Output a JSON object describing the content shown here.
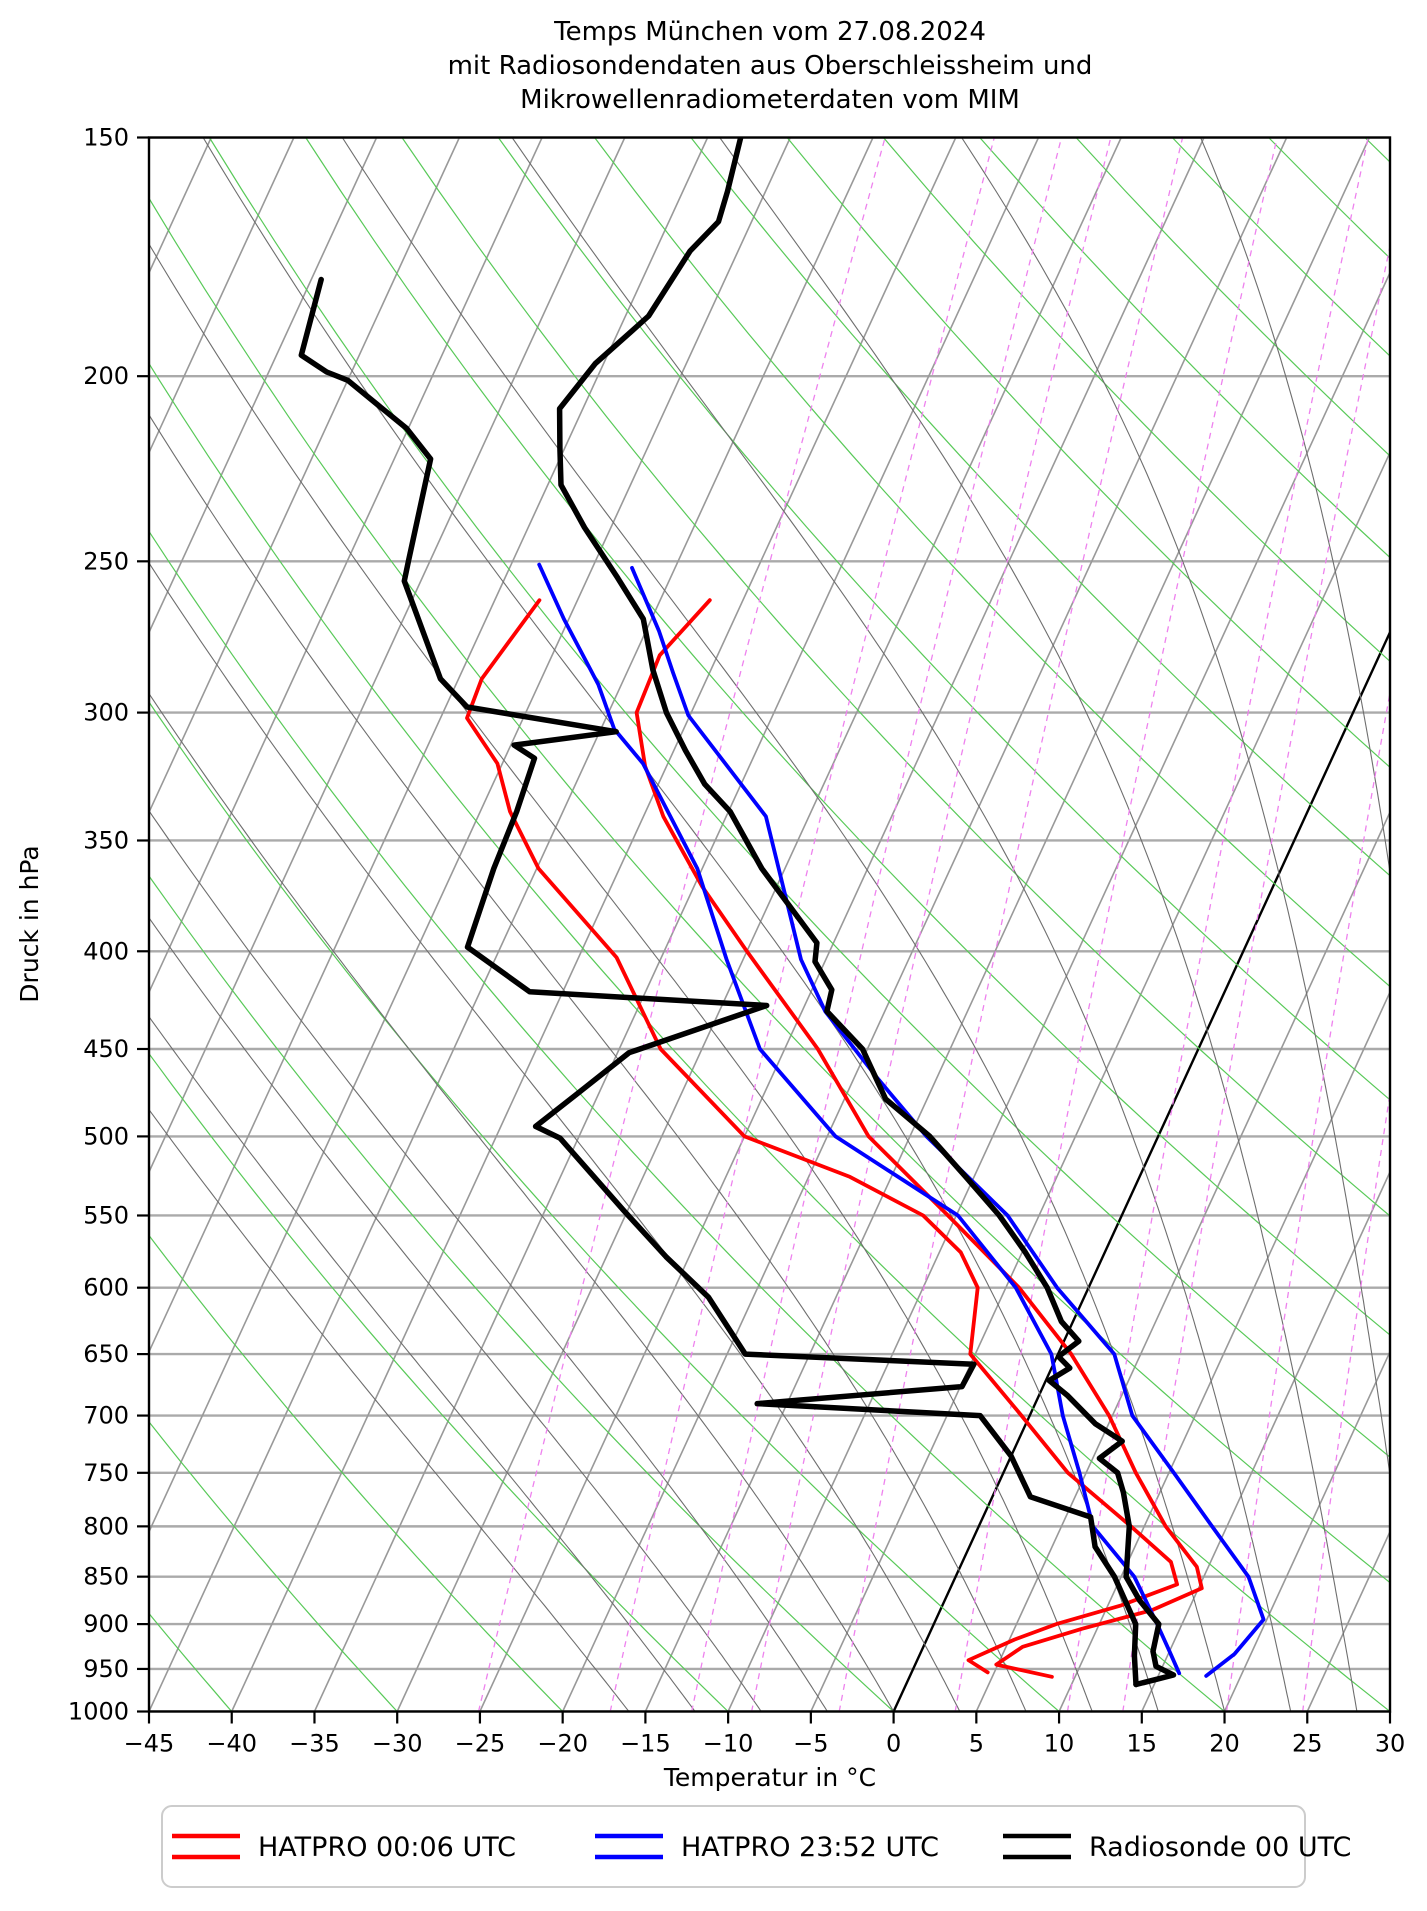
{
  "title": {
    "line1": "Temps München vom 27.08.2024",
    "line2": "mit Radiosondendaten aus Oberschleissheim und",
    "line3": "Mikrowellenradiometerdaten vom MIM"
  },
  "axes": {
    "x_label": "Temperatur in °C",
    "y_label": "Druck in hPa",
    "x_ticks": [
      -45,
      -40,
      -35,
      -30,
      -25,
      -20,
      -15,
      -10,
      -5,
      0,
      5,
      10,
      15,
      20,
      25,
      30
    ],
    "y_ticks": [
      150,
      200,
      250,
      300,
      350,
      400,
      450,
      500,
      550,
      600,
      650,
      700,
      750,
      800,
      850,
      900,
      950,
      1000
    ]
  },
  "legend": [
    {
      "label": "HATPRO 00:06 UTC",
      "color": "#ff0000"
    },
    {
      "label": "HATPRO 23:52 UTC",
      "color": "#0000ff"
    },
    {
      "label": "Radiosonde 00 UTC",
      "color": "#000000"
    }
  ],
  "colors": {
    "isotherm": "#999999",
    "zero_isotherm": "#000000",
    "pressure_line": "#aaaaaa",
    "dry_adiabat": "#58c958",
    "moist_adiabat": "#6e6e6e",
    "mixing_ratio": "#ee82ee",
    "hatpro_00": "#ff0000",
    "hatpro_2352": "#0000ff",
    "radiosonde": "#000000"
  },
  "chart_data": {
    "type": "line",
    "projection": "skew-T log-p",
    "xlabel": "Temperatur in °C",
    "ylabel": "Druck in hPa",
    "x_range_c": [
      -45,
      30
    ],
    "pressure_range_hpa": [
      150,
      1000
    ],
    "skew_deg_c_over_height": 44,
    "series": [
      {
        "name": "HATPRO 00:06 UTC temperature",
        "color": "#ff0000",
        "width": 3.8,
        "points_p_t": [
          [
            262,
            -42.0
          ],
          [
            280,
            -43.5
          ],
          [
            300,
            -43.3
          ],
          [
            320,
            -41.3
          ],
          [
            340,
            -38.8
          ],
          [
            370,
            -34.5
          ],
          [
            400,
            -30.0
          ],
          [
            450,
            -23.0
          ],
          [
            500,
            -17.5
          ],
          [
            550,
            -10.5
          ],
          [
            600,
            -4.2
          ],
          [
            650,
            0.8
          ],
          [
            700,
            4.8
          ],
          [
            750,
            8.0
          ],
          [
            800,
            11.3
          ],
          [
            840,
            14.3
          ],
          [
            862,
            15.2
          ],
          [
            885,
            12.8
          ],
          [
            905,
            9.1
          ],
          [
            925,
            6.0
          ],
          [
            945,
            4.9
          ],
          [
            959,
            8.6
          ]
        ]
      },
      {
        "name": "HATPRO 00:06 UTC dewpoint",
        "color": "#ff0000",
        "width": 3.8,
        "points_p_t": [
          [
            262,
            -52.3
          ],
          [
            288,
            -53.6
          ],
          [
            302,
            -53.4
          ],
          [
            319,
            -50.3
          ],
          [
            338,
            -48.2
          ],
          [
            362,
            -44.9
          ],
          [
            403,
            -37.7
          ],
          [
            450,
            -32.5
          ],
          [
            500,
            -25.0
          ],
          [
            525,
            -17.5
          ],
          [
            550,
            -12.0
          ],
          [
            575,
            -8.7
          ],
          [
            600,
            -6.7
          ],
          [
            650,
            -5.3
          ],
          [
            700,
            -0.5
          ],
          [
            750,
            3.9
          ],
          [
            800,
            9.2
          ],
          [
            835,
            12.6
          ],
          [
            858,
            13.6
          ],
          [
            880,
            10.8
          ],
          [
            900,
            7.4
          ],
          [
            917,
            5.3
          ],
          [
            940,
            3.1
          ],
          [
            954,
            4.6
          ]
        ]
      },
      {
        "name": "HATPRO 23:52 UTC temperature",
        "color": "#0000ff",
        "width": 3.8,
        "points_p_t": [
          [
            252,
            -47.6
          ],
          [
            272,
            -44.2
          ],
          [
            286,
            -42.2
          ],
          [
            301,
            -40.1
          ],
          [
            340,
            -32.6
          ],
          [
            404,
            -26.5
          ],
          [
            430,
            -23.6
          ],
          [
            466,
            -18.6
          ],
          [
            500,
            -14.0
          ],
          [
            550,
            -6.9
          ],
          [
            600,
            -1.9
          ],
          [
            650,
            3.4
          ],
          [
            700,
            6.2
          ],
          [
            750,
            10.3
          ],
          [
            800,
            14.1
          ],
          [
            850,
            17.7
          ],
          [
            895,
            19.8
          ],
          [
            933,
            19.0
          ],
          [
            958,
            17.9
          ]
        ]
      },
      {
        "name": "HATPRO 23:52 UTC dewpoint",
        "color": "#0000ff",
        "width": 3.8,
        "points_p_t": [
          [
            251,
            -53.3
          ],
          [
            268,
            -50.3
          ],
          [
            290,
            -46.4
          ],
          [
            306,
            -44.2
          ],
          [
            319,
            -41.5
          ],
          [
            362,
            -35.3
          ],
          [
            404,
            -31.0
          ],
          [
            450,
            -26.5
          ],
          [
            500,
            -19.5
          ],
          [
            550,
            -9.9
          ],
          [
            600,
            -4.4
          ],
          [
            650,
            -0.4
          ],
          [
            700,
            2.0
          ],
          [
            750,
            4.6
          ],
          [
            800,
            6.9
          ],
          [
            850,
            10.8
          ],
          [
            900,
            13.5
          ],
          [
            930,
            15.0
          ],
          [
            955,
            16.2
          ]
        ]
      },
      {
        "name": "Radiosonde 00 UTC temperature",
        "color": "#000000",
        "width": 5.5,
        "points_p_t": [
          [
            150,
            -53.0
          ],
          [
            160,
            -52.3
          ],
          [
            166,
            -52.0
          ],
          [
            172,
            -52.9
          ],
          [
            186,
            -53.6
          ],
          [
            197,
            -55.5
          ],
          [
            208,
            -56.4
          ],
          [
            218,
            -55.3
          ],
          [
            228,
            -54.2
          ],
          [
            240,
            -51.6
          ],
          [
            255,
            -48.2
          ],
          [
            268,
            -45.5
          ],
          [
            285,
            -43.5
          ],
          [
            300,
            -41.5
          ],
          [
            314,
            -39.3
          ],
          [
            327,
            -37.2
          ],
          [
            338,
            -34.9
          ],
          [
            362,
            -31.4
          ],
          [
            396,
            -26.0
          ],
          [
            405,
            -25.6
          ],
          [
            419,
            -23.8
          ],
          [
            430,
            -23.5
          ],
          [
            450,
            -20.3
          ],
          [
            478,
            -17.5
          ],
          [
            500,
            -13.8
          ],
          [
            525,
            -10.5
          ],
          [
            550,
            -7.4
          ],
          [
            575,
            -4.8
          ],
          [
            600,
            -2.5
          ],
          [
            625,
            -0.7
          ],
          [
            640,
            0.9
          ],
          [
            652,
            0.1
          ],
          [
            661,
            1.1
          ],
          [
            671,
            0.2
          ],
          [
            683,
            1.7
          ],
          [
            707,
            4.2
          ],
          [
            722,
            6.3
          ],
          [
            737,
            5.4
          ],
          [
            750,
            6.9
          ],
          [
            768,
            7.8
          ],
          [
            800,
            9.1
          ],
          [
            850,
            10.3
          ],
          [
            875,
            11.8
          ],
          [
            900,
            13.6
          ],
          [
            930,
            14.0
          ],
          [
            947,
            14.6
          ],
          [
            957,
            15.9
          ],
          [
            968,
            13.9
          ]
        ]
      },
      {
        "name": "Radiosonde 00 UTC dewpoint",
        "color": "#000000",
        "width": 5.5,
        "points_p_t": [
          [
            178,
            -74.4
          ],
          [
            195,
            -73.5
          ],
          [
            199,
            -71.5
          ],
          [
            201,
            -70.0
          ],
          [
            213,
            -65.1
          ],
          [
            221,
            -62.8
          ],
          [
            250,
            -61.3
          ],
          [
            256,
            -61.0
          ],
          [
            288,
            -56.1
          ],
          [
            298,
            -53.7
          ],
          [
            307,
            -44.0
          ],
          [
            312,
            -49.8
          ],
          [
            317,
            -48.2
          ],
          [
            338,
            -47.8
          ],
          [
            362,
            -47.6
          ],
          [
            398,
            -47.0
          ],
          [
            420,
            -42.0
          ],
          [
            427,
            -27.3
          ],
          [
            452,
            -34.3
          ],
          [
            475,
            -36.3
          ],
          [
            494,
            -37.9
          ],
          [
            501,
            -36.1
          ],
          [
            547,
            -30.2
          ],
          [
            578,
            -26.4
          ],
          [
            607,
            -22.7
          ],
          [
            650,
            -18.9
          ],
          [
            658,
            -4.8
          ],
          [
            676,
            -4.9
          ],
          [
            690,
            -16.8
          ],
          [
            700,
            -3.0
          ],
          [
            735,
            0.0
          ],
          [
            772,
            2.3
          ],
          [
            791,
            6.5
          ],
          [
            820,
            7.6
          ],
          [
            850,
            9.6
          ],
          [
            900,
            12.2
          ],
          [
            935,
            13.0
          ],
          [
            968,
            13.9
          ]
        ]
      }
    ],
    "background": {
      "isotherms_every_c": 5,
      "pressure_lines_every_hpa": 50,
      "dry_adiabats_theta_c": [
        -40,
        -30,
        -20,
        -10,
        0,
        10,
        20,
        30,
        40,
        50,
        60,
        70,
        80,
        90,
        100,
        110,
        120,
        130,
        140,
        150,
        160,
        170,
        180
      ],
      "moist_adiabats_start_c": [
        -16,
        -12,
        -8,
        -4,
        0,
        4,
        8,
        12,
        16,
        20,
        24,
        28,
        32,
        36
      ],
      "mixing_ratio_g_kg": [
        0.5,
        1,
        1.5,
        2,
        3,
        5,
        8,
        10,
        15,
        20,
        30
      ]
    }
  }
}
